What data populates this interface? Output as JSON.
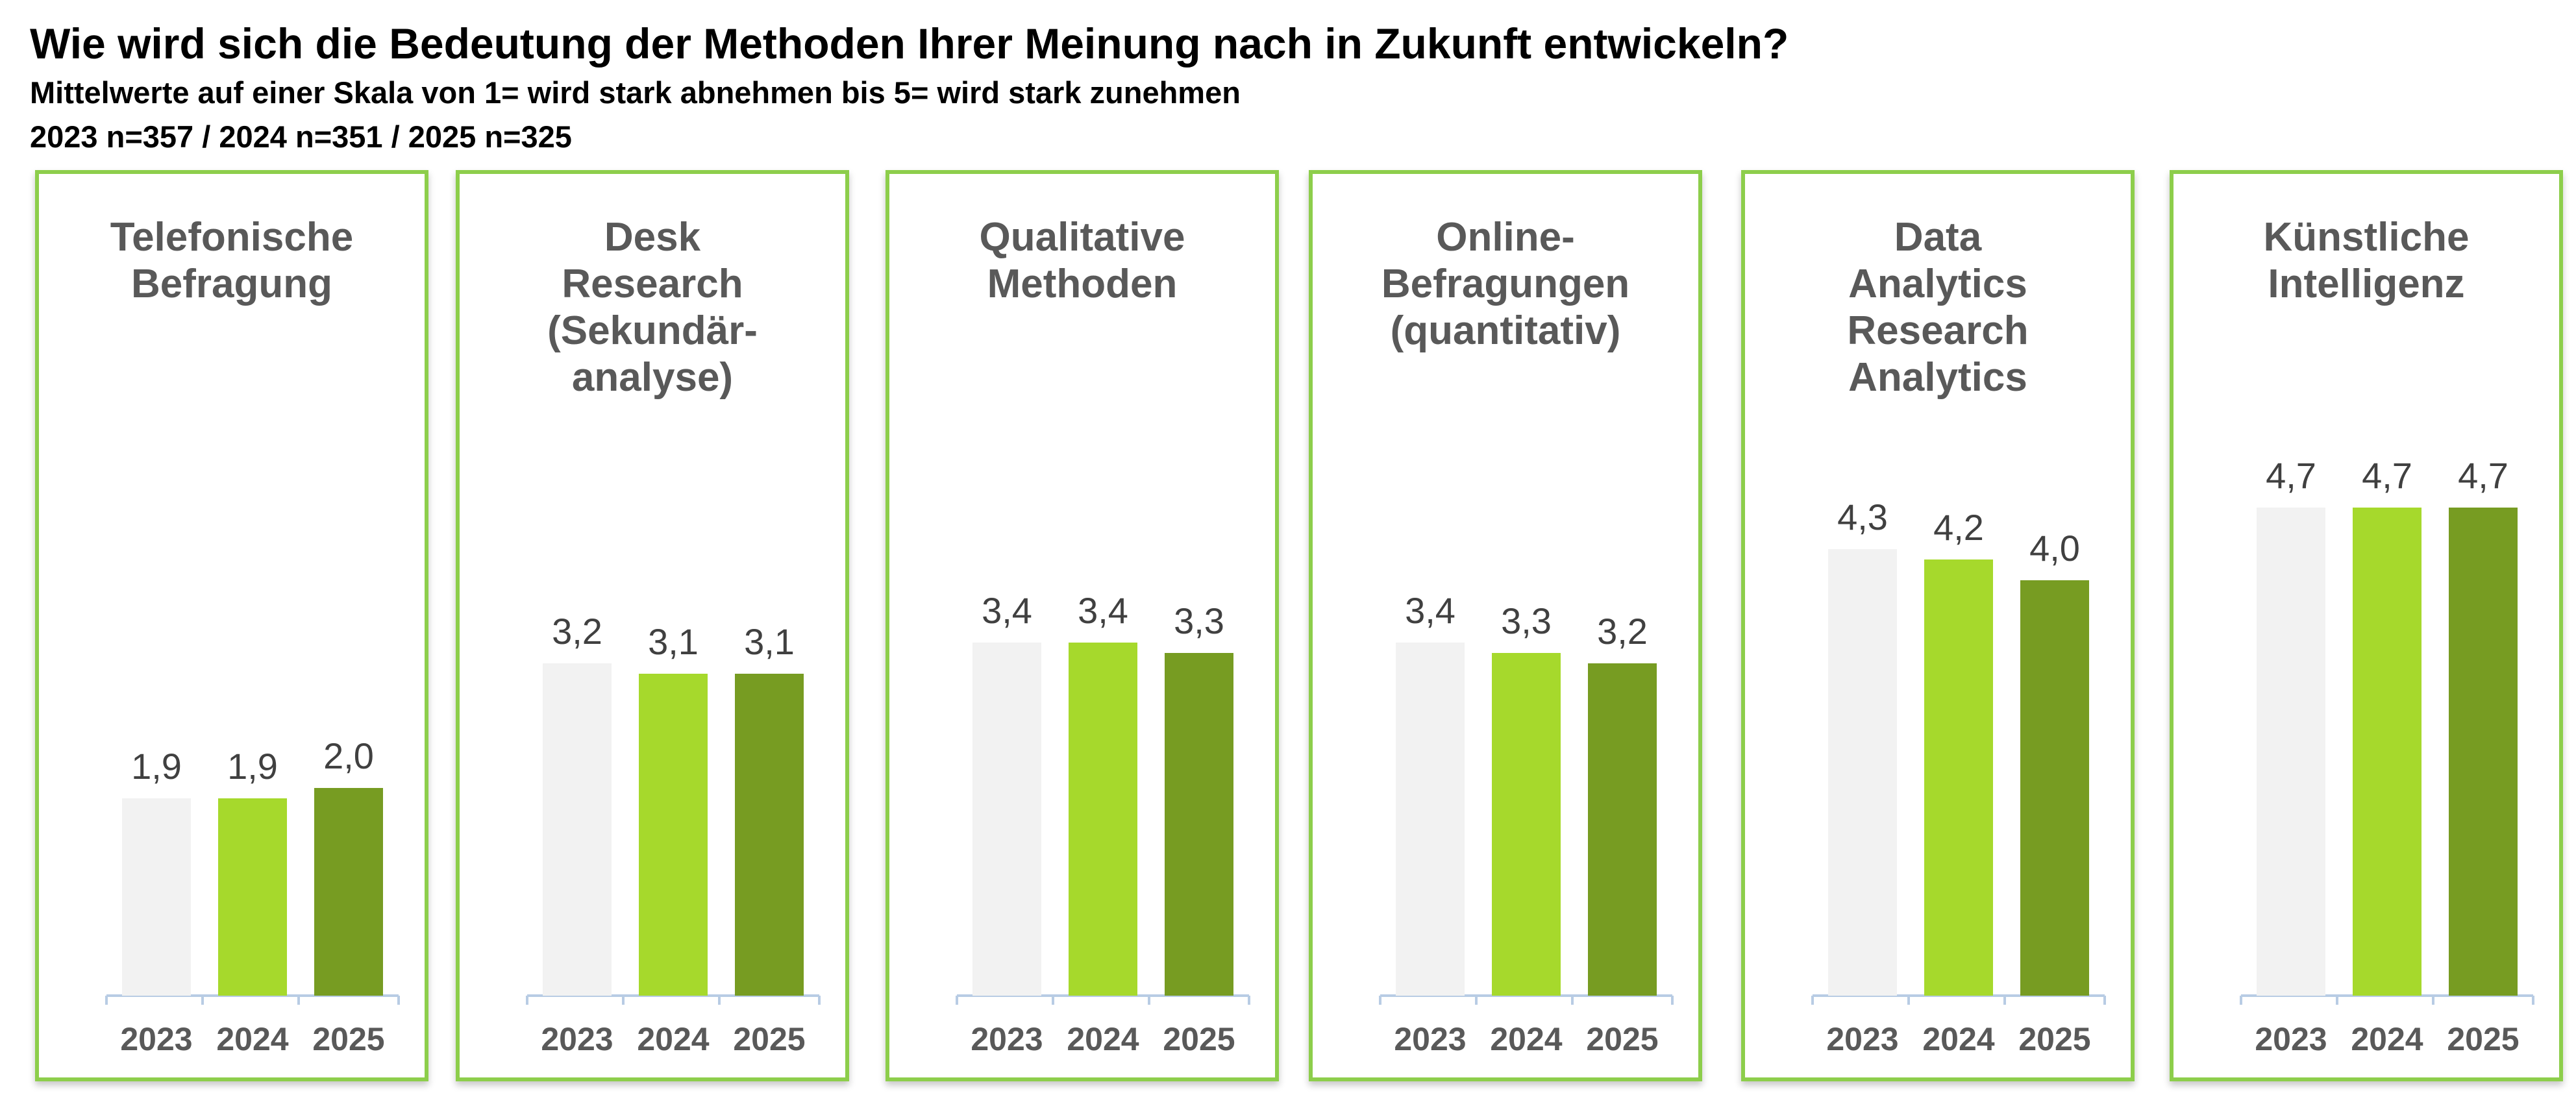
{
  "header": {
    "title": "Wie wird sich die Bedeutung der Methoden Ihrer Meinung nach in Zukunft entwickeln?",
    "subtitle": "Mittelwerte auf einer Skala von 1= wird stark abnehmen bis 5= wird stark zunehmen",
    "sample": "2023 n=357 / 2024 n=351 / 2025 n=325"
  },
  "colors": {
    "2023": "#f2f2f2",
    "2024": "#a6d92c",
    "2025": "#779c22",
    "panel_border": "#8dce4b",
    "axis": "#b8cce4"
  },
  "chart_data": [
    {
      "type": "bar",
      "title": "Telefonische\nBefragung",
      "categories": [
        "2023",
        "2024",
        "2025"
      ],
      "values": [
        1.9,
        1.9,
        2.0
      ],
      "labels": [
        "1,9",
        "1,9",
        "2,0"
      ]
    },
    {
      "type": "bar",
      "title": "Desk\nResearch\n(Sekundär-\nanalyse)",
      "categories": [
        "2023",
        "2024",
        "2025"
      ],
      "values": [
        3.2,
        3.1,
        3.1
      ],
      "labels": [
        "3,2",
        "3,1",
        "3,1"
      ]
    },
    {
      "type": "bar",
      "title": "Qualitative\nMethoden",
      "categories": [
        "2023",
        "2024",
        "2025"
      ],
      "values": [
        3.4,
        3.4,
        3.3
      ],
      "labels": [
        "3,4",
        "3,4",
        "3,3"
      ]
    },
    {
      "type": "bar",
      "title": "Online-\nBefragungen\n(quantitativ)",
      "categories": [
        "2023",
        "2024",
        "2025"
      ],
      "values": [
        3.4,
        3.3,
        3.2
      ],
      "labels": [
        "3,4",
        "3,3",
        "3,2"
      ]
    },
    {
      "type": "bar",
      "title": "Data\nAnalytics\nResearch\nAnalytics",
      "categories": [
        "2023",
        "2024",
        "2025"
      ],
      "values": [
        4.3,
        4.2,
        4.0
      ],
      "labels": [
        "4,3",
        "4,2",
        "4,0"
      ]
    },
    {
      "type": "bar",
      "title": "Künstliche\nIntelligenz",
      "categories": [
        "2023",
        "2024",
        "2025"
      ],
      "values": [
        4.7,
        4.7,
        4.7
      ],
      "labels": [
        "4,7",
        "4,7",
        "4,7"
      ]
    }
  ]
}
